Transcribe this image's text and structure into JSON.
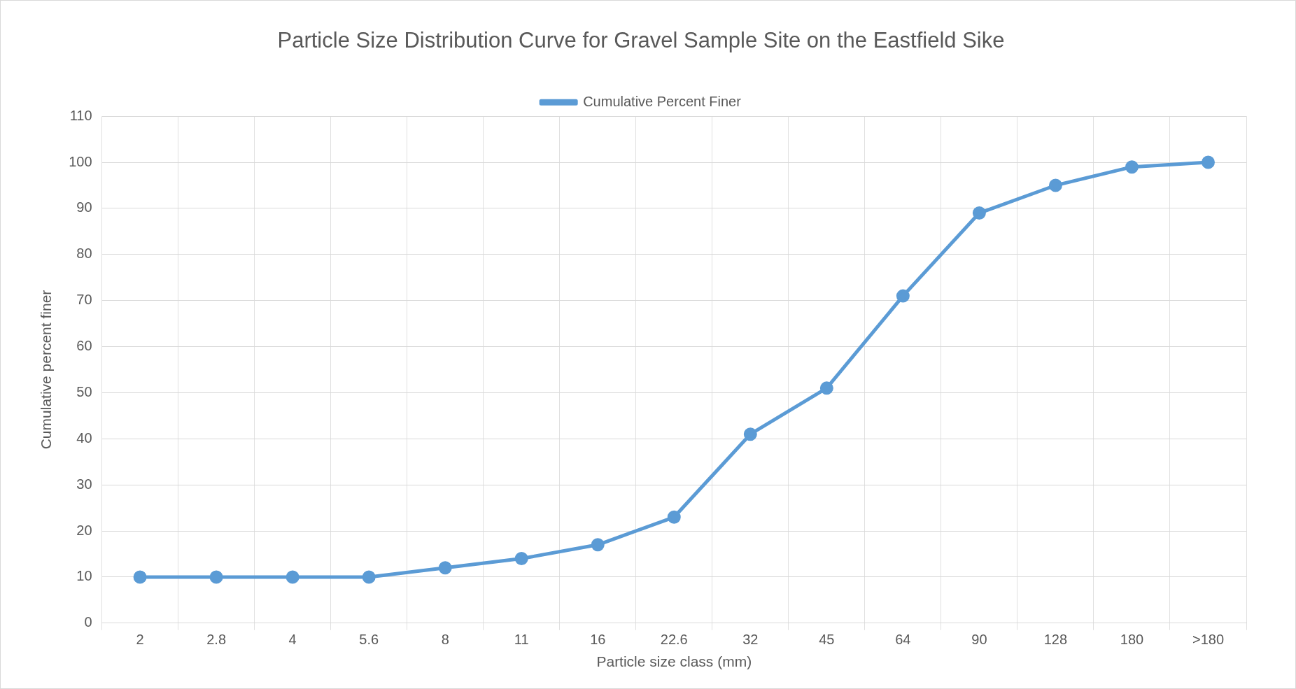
{
  "chart_data": {
    "type": "line",
    "title": "Particle Size Distribution Curve for Gravel Sample Site on the Eastfield Sike",
    "xlabel": "Particle size class (mm)",
    "ylabel": "Cumulative percent finer",
    "categories": [
      "2",
      "2.8",
      "4",
      "5.6",
      "8",
      "11",
      "16",
      "22.6",
      "32",
      "45",
      "64",
      "90",
      "128",
      "180",
      ">180"
    ],
    "series": [
      {
        "name": "Cumulative Percent Finer",
        "color": "#5b9bd5",
        "values": [
          10,
          10,
          10,
          10,
          12,
          14,
          17,
          23,
          41,
          51,
          71,
          89,
          95,
          99,
          100
        ]
      }
    ],
    "ylim": [
      0,
      110
    ],
    "yticks": [
      0,
      10,
      20,
      30,
      40,
      50,
      60,
      70,
      80,
      90,
      100,
      110
    ],
    "grid": true,
    "legend": "top",
    "marker": "circle",
    "line_style": "solid"
  }
}
